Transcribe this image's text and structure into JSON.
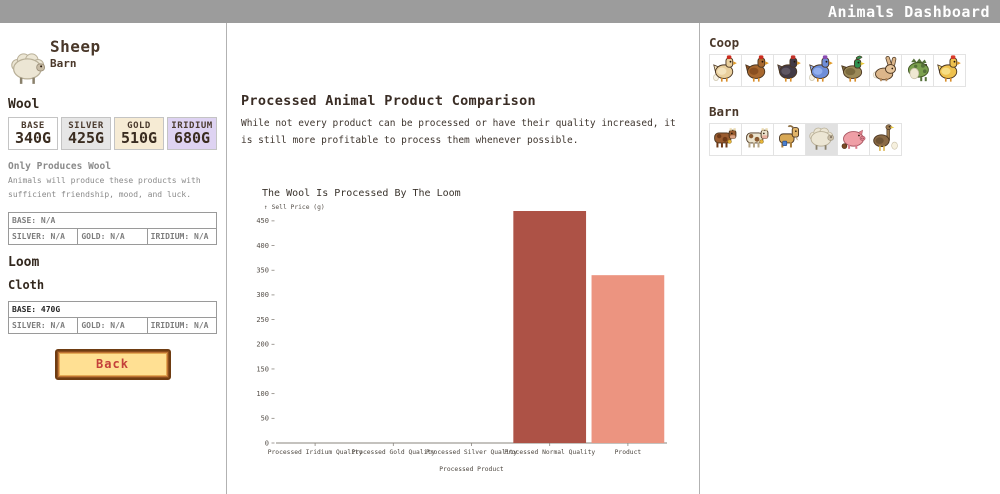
{
  "header": {
    "title": "Animals Dashboard"
  },
  "left_panel": {
    "animal_name": "Sheep",
    "building": "Barn",
    "animal_icon": "sheep",
    "product_heading": "Wool",
    "prices": [
      {
        "tier": "BASE",
        "value": "340G",
        "bg": "#ffffff"
      },
      {
        "tier": "SILVER",
        "value": "425G",
        "bg": "#e6e6e6"
      },
      {
        "tier": "GOLD",
        "value": "510G",
        "bg": "#f6ebd4"
      },
      {
        "tier": "IRIDIUM",
        "value": "680G",
        "bg": "#ded3f2"
      }
    ],
    "note_title": "Only Produces Wool",
    "note_body": "Animals will produce these products with sufficient friendship, mood, and luck.",
    "raw_table": {
      "base": {
        "label": "BASE:",
        "value": "N/A"
      },
      "silver": {
        "label": "SILVER:",
        "value": "N/A"
      },
      "gold": {
        "label": "GOLD:",
        "value": "N/A"
      },
      "iridium": {
        "label": "IRIDIUM:",
        "value": "N/A"
      }
    },
    "machine_heading": "Loom",
    "processed_name": "Cloth",
    "processed_table": {
      "base": {
        "label": "BASE:",
        "value": "470G"
      },
      "silver": {
        "label": "SILVER:",
        "value": "N/A"
      },
      "gold": {
        "label": "GOLD:",
        "value": "N/A"
      },
      "iridium": {
        "label": "IRIDIUM:",
        "value": "N/A"
      }
    },
    "back_label": "Back"
  },
  "main": {
    "title": "Processed Animal Product Comparison",
    "description": "While not every product can be processed or have their quality increased, it is still more profitable to process them whenever possible."
  },
  "chart_data": {
    "type": "bar",
    "title": "The Wool Is Processed By The Loom",
    "xlabel": "Processed Product",
    "ylabel": "↑ Sell Price (g)",
    "categories": [
      "Processed Iridium Quality",
      "Processed Gold Quality",
      "Processed Silver Quality",
      "Processed Normal Quality",
      "Product"
    ],
    "values": [
      0,
      0,
      0,
      470,
      340
    ],
    "bar_colors": [
      "#ad5246",
      "#ad5246",
      "#ad5246",
      "#ad5246",
      "#ec9480"
    ],
    "ylim": [
      0,
      470
    ],
    "ytick_step": 50,
    "grid": false,
    "legend": "none"
  },
  "right_panel": {
    "coop": {
      "label": "Coop",
      "animals": [
        {
          "id": "white-chicken",
          "icon": "white_chicken",
          "selected": false
        },
        {
          "id": "brown-chicken",
          "icon": "brown_chicken",
          "selected": false
        },
        {
          "id": "void-chicken",
          "icon": "void_chicken",
          "selected": false
        },
        {
          "id": "blue-chicken",
          "icon": "blue_chicken",
          "selected": false
        },
        {
          "id": "duck",
          "icon": "duck",
          "selected": false
        },
        {
          "id": "rabbit",
          "icon": "rabbit",
          "selected": false
        },
        {
          "id": "dinosaur",
          "icon": "dinosaur",
          "selected": false
        },
        {
          "id": "golden-chicken",
          "icon": "golden_chicken",
          "selected": false
        }
      ]
    },
    "barn": {
      "label": "Barn",
      "animals": [
        {
          "id": "brown-cow",
          "icon": "brown_cow",
          "selected": false
        },
        {
          "id": "white-cow",
          "icon": "white_cow",
          "selected": false
        },
        {
          "id": "goat",
          "icon": "goat",
          "selected": false
        },
        {
          "id": "sheep",
          "icon": "sheep",
          "selected": true
        },
        {
          "id": "pig",
          "icon": "pig",
          "selected": false
        },
        {
          "id": "ostrich",
          "icon": "ostrich",
          "selected": false
        }
      ]
    }
  }
}
